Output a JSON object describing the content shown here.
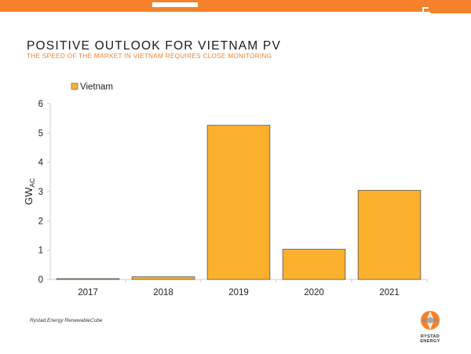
{
  "slide": {
    "title": "POSITIVE OUTLOOK FOR VIETNAM PV",
    "subtitle": "THE SPEED OF THE MARKET IN VIETNAM REQUIRES CLOSE MONITORING",
    "source": "Rystad Energy RenewableCube",
    "logo_text": "RYSTAD ENERGY"
  },
  "colors": {
    "accent": "#f5822a",
    "bar_fill": "#fbb02e",
    "bar_stroke": "#555555"
  },
  "chart_data": {
    "type": "bar",
    "categories": [
      "2017",
      "2018",
      "2019",
      "2020",
      "2021"
    ],
    "series": [
      {
        "name": "Vietnam",
        "values": [
          0.01,
          0.09,
          5.26,
          1.03,
          3.04
        ]
      }
    ],
    "ylabel": "GW",
    "ylabel_sub": "AC",
    "ylim": [
      0,
      6
    ],
    "yticks": [
      "0",
      "1",
      "2",
      "3",
      "4",
      "5",
      "6"
    ],
    "legend_position": "top-left",
    "grid": false
  }
}
